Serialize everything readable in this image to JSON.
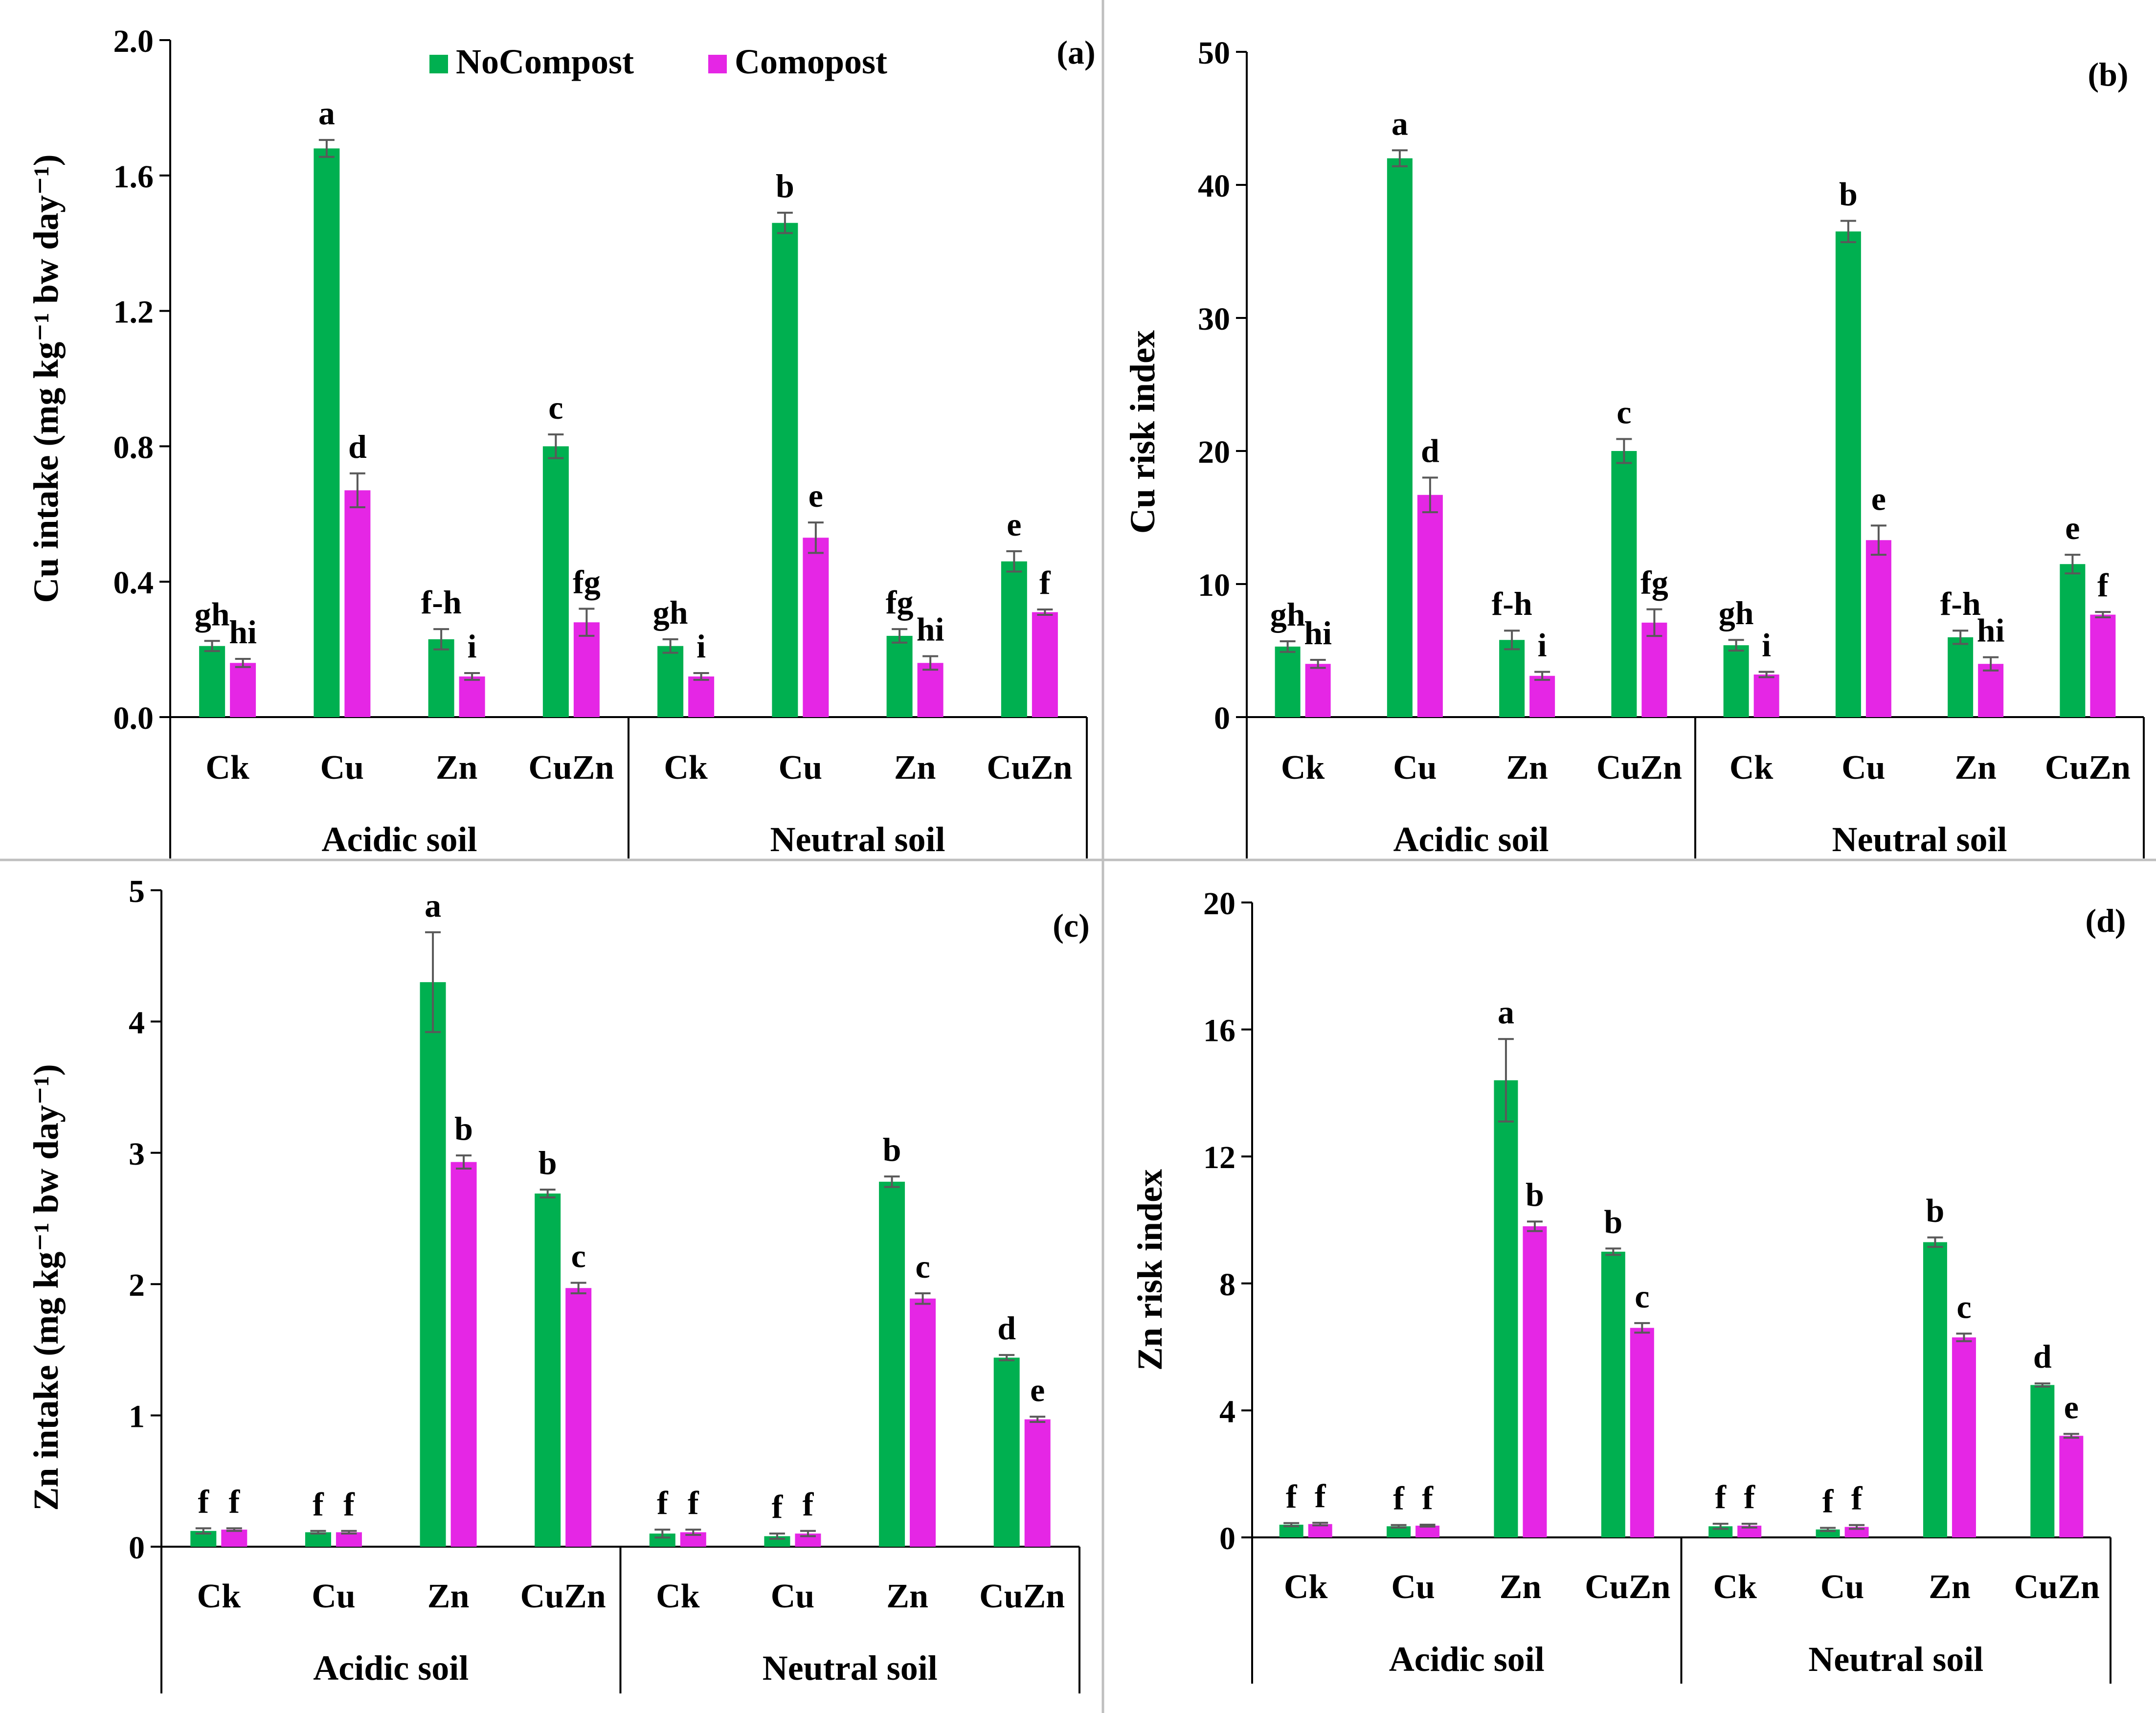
{
  "colors": {
    "nocompost": "#00B050",
    "compost": "#E526E5",
    "errorbar": "#595959",
    "axis": "#000000",
    "divider": "#BFBFBF"
  },
  "legend": {
    "nocompost": "NoCompost",
    "compost": "Comopost"
  },
  "chart_data": [
    {
      "id": "a",
      "type": "bar",
      "panel_label": "(a)",
      "ylabel": "Cu intake (mg kg⁻¹ bw day⁻¹)",
      "ylim": [
        0,
        2.0
      ],
      "yticks": [
        "0.0",
        "0.4",
        "0.8",
        "1.2",
        "1.6",
        "2.0"
      ],
      "categories": [
        "Ck",
        "Cu",
        "Zn",
        "CuZn",
        "Ck",
        "Cu",
        "Zn",
        "CuZn"
      ],
      "groups": [
        "Acidic soil",
        "Neutral soil"
      ],
      "series": [
        {
          "name": "NoCompost",
          "values": [
            0.21,
            1.68,
            0.23,
            0.8,
            0.21,
            1.46,
            0.24,
            0.46
          ],
          "errors": [
            0.015,
            0.025,
            0.03,
            0.035,
            0.02,
            0.03,
            0.02,
            0.03
          ],
          "letters": [
            "gh",
            "a",
            "f-h",
            "c",
            "gh",
            "b",
            "fg",
            "e"
          ]
        },
        {
          "name": "Comopost",
          "values": [
            0.16,
            0.67,
            0.12,
            0.28,
            0.12,
            0.53,
            0.16,
            0.31
          ],
          "errors": [
            0.012,
            0.05,
            0.01,
            0.04,
            0.01,
            0.045,
            0.02,
            0.008
          ],
          "letters": [
            "hi",
            "d",
            "i",
            "fg",
            "i",
            "e",
            "hi",
            "f"
          ]
        }
      ]
    },
    {
      "id": "b",
      "type": "bar",
      "panel_label": "(b)",
      "ylabel": "Cu risk index",
      "ylim": [
        0,
        50
      ],
      "yticks": [
        "0",
        "10",
        "20",
        "30",
        "40",
        "50"
      ],
      "categories": [
        "Ck",
        "Cu",
        "Zn",
        "CuZn",
        "Ck",
        "Cu",
        "Zn",
        "CuZn"
      ],
      "groups": [
        "Acidic soil",
        "Neutral soil"
      ],
      "series": [
        {
          "name": "NoCompost",
          "values": [
            5.3,
            42.0,
            5.8,
            20.0,
            5.4,
            36.5,
            6.0,
            11.5
          ],
          "errors": [
            0.4,
            0.6,
            0.7,
            0.9,
            0.4,
            0.8,
            0.5,
            0.7
          ],
          "letters": [
            "gh",
            "a",
            "f-h",
            "c",
            "gh",
            "b",
            "f-h",
            "e"
          ]
        },
        {
          "name": "Comopost",
          "values": [
            4.0,
            16.7,
            3.1,
            7.1,
            3.2,
            13.3,
            4.0,
            7.7
          ],
          "errors": [
            0.3,
            1.3,
            0.3,
            1.0,
            0.2,
            1.1,
            0.5,
            0.2
          ],
          "letters": [
            "hi",
            "d",
            "i",
            "fg",
            "i",
            "e",
            "hi",
            "f"
          ]
        }
      ]
    },
    {
      "id": "c",
      "type": "bar",
      "panel_label": "(c)",
      "ylabel": "Zn intake (mg kg⁻¹ bw day⁻¹)",
      "ylim": [
        0,
        5
      ],
      "yticks": [
        "0",
        "1",
        "2",
        "3",
        "4",
        "5"
      ],
      "categories": [
        "Ck",
        "Cu",
        "Zn",
        "CuZn",
        "Ck",
        "Cu",
        "Zn",
        "CuZn"
      ],
      "groups": [
        "Acidic soil",
        "Neutral soil"
      ],
      "series": [
        {
          "name": "NoCompost",
          "values": [
            0.12,
            0.11,
            4.3,
            2.69,
            0.1,
            0.08,
            2.78,
            1.44
          ],
          "errors": [
            0.02,
            0.01,
            0.38,
            0.03,
            0.03,
            0.02,
            0.04,
            0.02
          ],
          "letters": [
            "f",
            "f",
            "a",
            "b",
            "f",
            "f",
            "b",
            "d"
          ]
        },
        {
          "name": "Comopost",
          "values": [
            0.13,
            0.11,
            2.93,
            1.97,
            0.11,
            0.1,
            1.89,
            0.97
          ],
          "errors": [
            0.01,
            0.01,
            0.05,
            0.04,
            0.02,
            0.02,
            0.04,
            0.02
          ],
          "letters": [
            "f",
            "f",
            "b",
            "c",
            "f",
            "f",
            "c",
            "e"
          ]
        }
      ]
    },
    {
      "id": "d",
      "type": "bar",
      "panel_label": "(d)",
      "ylabel": "Zn risk index",
      "ylim": [
        0,
        20
      ],
      "yticks": [
        "0",
        "4",
        "8",
        "12",
        "16",
        "20"
      ],
      "categories": [
        "Ck",
        "Cu",
        "Zn",
        "CuZn",
        "Ck",
        "Cu",
        "Zn",
        "CuZn"
      ],
      "groups": [
        "Acidic soil",
        "Neutral soil"
      ],
      "series": [
        {
          "name": "NoCompost",
          "values": [
            0.4,
            0.35,
            14.4,
            9.0,
            0.35,
            0.25,
            9.3,
            4.8
          ],
          "errors": [
            0.05,
            0.04,
            1.3,
            0.1,
            0.08,
            0.05,
            0.15,
            0.05
          ],
          "letters": [
            "f",
            "f",
            "a",
            "b",
            "f",
            "f",
            "b",
            "d"
          ]
        },
        {
          "name": "Comopost",
          "values": [
            0.42,
            0.37,
            9.8,
            6.6,
            0.37,
            0.33,
            6.3,
            3.2
          ],
          "errors": [
            0.04,
            0.03,
            0.15,
            0.15,
            0.06,
            0.06,
            0.12,
            0.06
          ],
          "letters": [
            "f",
            "f",
            "b",
            "c",
            "f",
            "f",
            "c",
            "e"
          ]
        }
      ]
    }
  ]
}
